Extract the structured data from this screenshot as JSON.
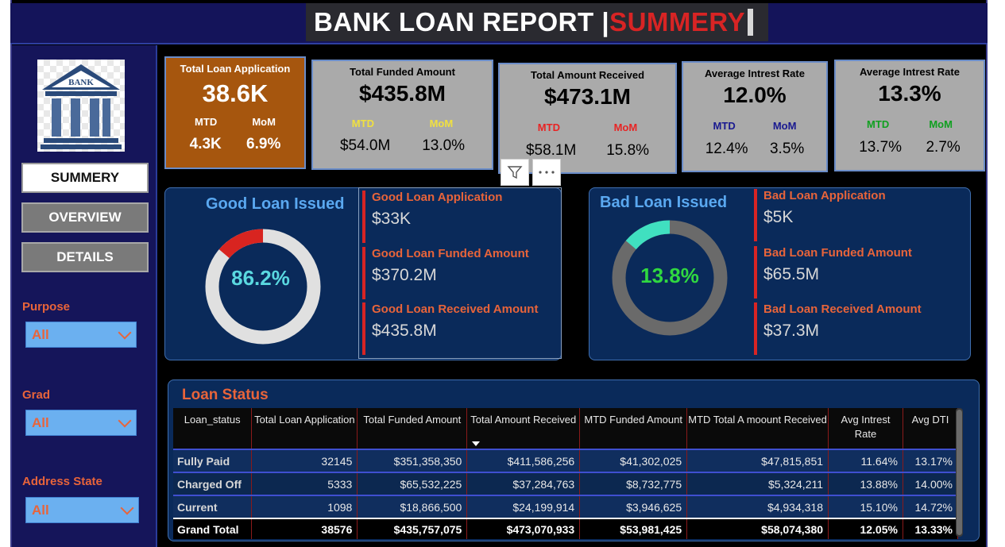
{
  "header": {
    "title_main": "BANK LOAN REPORT | ",
    "title_accent": "SUMMERY"
  },
  "logo": {
    "text": "BANK"
  },
  "nav": [
    {
      "label": "SUMMERY",
      "active": true
    },
    {
      "label": "OVERVIEW",
      "active": false
    },
    {
      "label": "DETAILS",
      "active": false
    }
  ],
  "filters": [
    {
      "label": "Purpose",
      "value": "All"
    },
    {
      "label": "Grad",
      "value": "All"
    },
    {
      "label": "Address State",
      "value": "All"
    }
  ],
  "kpis": [
    {
      "title": "Total Loan Application",
      "value": "38.6K",
      "mtd_label": "MTD",
      "mom_label": "MoM",
      "mtd": "4.3K",
      "mom": "6.9%",
      "mtd_color": "#ffffff",
      "mom_color": "#ffffff"
    },
    {
      "title": "Total Funded Amount",
      "value": "$435.8M",
      "mtd_label": "MTD",
      "mom_label": "MoM",
      "mtd": "$54.0M",
      "mom": "13.0%",
      "mtd_color": "#f0e040",
      "mom_color": "#f0e040"
    },
    {
      "title": "Total  Amount Received",
      "value": "$473.1M",
      "mtd_label": "MTD",
      "mom_label": "MoM",
      "mtd": "$58.1M",
      "mom": "15.8%",
      "mtd_color": "#e82424",
      "mom_color": "#e82424"
    },
    {
      "title": "Average Intrest Rate",
      "value": "12.0%",
      "mtd_label": "MTD",
      "mom_label": "MoM",
      "mtd": "12.4%",
      "mom": "3.5%",
      "mtd_color": "#1a1a90",
      "mom_color": "#1a1a90"
    },
    {
      "title": "Average Intrest Rate",
      "value": "13.3%",
      "mtd_label": "MTD",
      "mom_label": "MoM",
      "mtd": "13.7%",
      "mom": "2.7%",
      "mtd_color": "#10a020",
      "mom_color": "#10a020"
    }
  ],
  "good_loan": {
    "title": "Good Loan Issued",
    "percent": "86.2%",
    "percent_value": 86.2,
    "metrics": [
      {
        "label": "Good Loan Application",
        "value": "$33K"
      },
      {
        "label": "Good Loan Funded Amount",
        "value": "$370.2M"
      },
      {
        "label": "Good Loan Received Amount",
        "value": "$435.8M"
      }
    ]
  },
  "bad_loan": {
    "title": "Bad Loan Issued",
    "percent": "13.8%",
    "percent_value": 13.8,
    "metrics": [
      {
        "label": "Bad Loan Application",
        "value": "$5K"
      },
      {
        "label": "Bad Loan Funded Amount",
        "value": "$65.5M"
      },
      {
        "label": "Bad Loan Received Amount",
        "value": "$37.3M"
      }
    ]
  },
  "loan_status": {
    "title": "Loan Status",
    "columns": [
      "Loan_status",
      "Total Loan Application",
      "Total Funded Amount",
      "Total Amount Received",
      "MTD Funded Amount",
      "MTD Total A moount Received",
      "Avg Intrest Rate",
      "Avg DTI"
    ],
    "rows": [
      [
        "Fully Paid",
        "32145",
        "$351,358,350",
        "$411,586,256",
        "$41,302,025",
        "$47,815,851",
        "11.64%",
        "13.17%"
      ],
      [
        "Charged Off",
        "5333",
        "$65,532,225",
        "$37,284,763",
        "$8,732,775",
        "$5,324,211",
        "13.88%",
        "14.00%"
      ],
      [
        "Current",
        "1098",
        "$18,866,500",
        "$24,199,914",
        "$3,946,625",
        "$4,934,318",
        "15.10%",
        "14.72%"
      ]
    ],
    "total": [
      "Grand Total",
      "38576",
      "$435,757,075",
      "$473,070,933",
      "$53,981,425",
      "$58,074,380",
      "12.05%",
      "13.33%"
    ]
  },
  "colors": {
    "accent_red": "#d82424",
    "label_orange": "#e8643a",
    "good_ring": "#d82420",
    "bad_ring": "#40e0c0",
    "ring_track_good": "#e0e0e0",
    "ring_track_bad": "#6a6a6a"
  }
}
